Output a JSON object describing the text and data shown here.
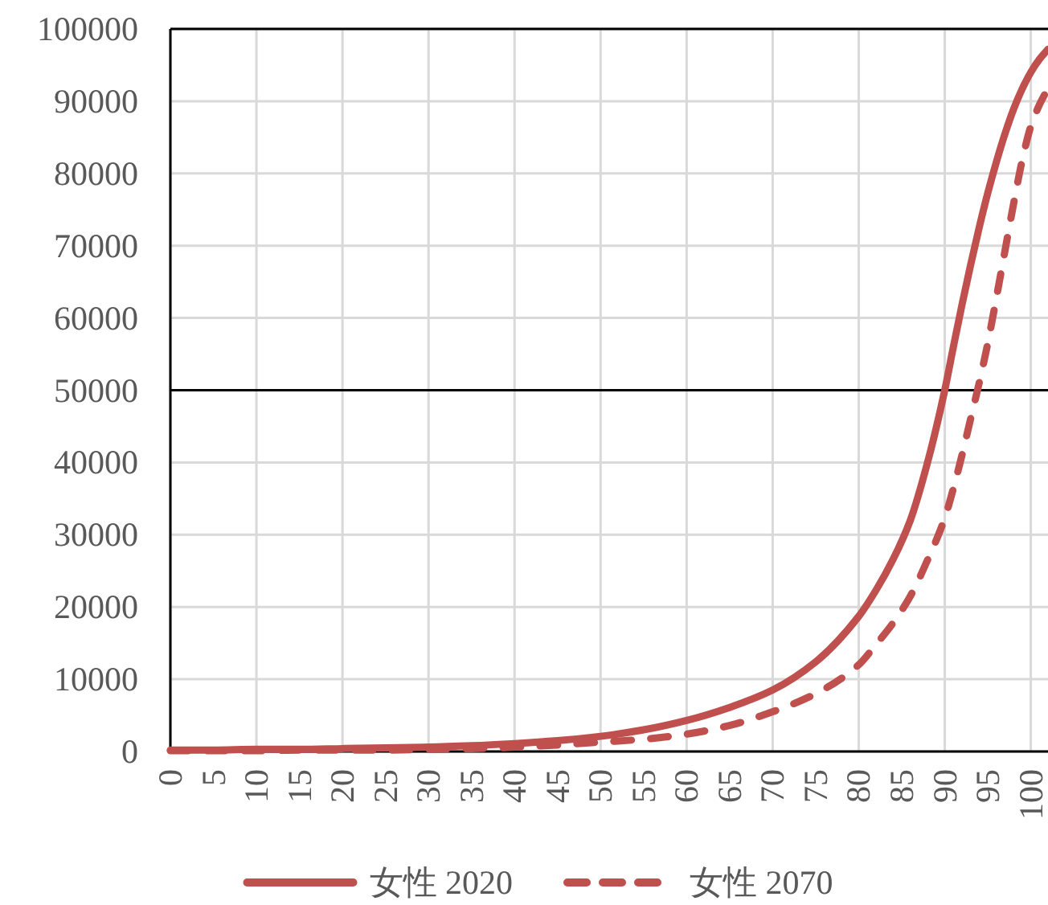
{
  "chart_data": {
    "type": "line",
    "x": [
      0,
      5,
      10,
      15,
      20,
      25,
      30,
      35,
      40,
      45,
      50,
      55,
      60,
      65,
      70,
      75,
      80,
      82,
      84,
      86,
      88,
      90,
      91,
      92,
      93,
      94,
      95,
      96,
      97,
      98,
      99,
      100,
      101,
      102
    ],
    "series": [
      {
        "name": "女性 2020",
        "color": "#c0504d",
        "line_style": "solid",
        "values": [
          200,
          200,
          300,
          300,
          400,
          500,
          600,
          800,
          1100,
          1500,
          2100,
          3000,
          4300,
          6100,
          8500,
          12400,
          18700,
          22300,
          26600,
          32000,
          40000,
          50000,
          56000,
          61800,
          67300,
          72500,
          77300,
          81600,
          85500,
          88900,
          91700,
          94000,
          95800,
          97200
        ]
      },
      {
        "name": "女性 2070",
        "color": "#c0504d",
        "line_style": "dashed",
        "values": [
          100,
          100,
          100,
          200,
          200,
          200,
          300,
          400,
          600,
          900,
          1300,
          1700,
          2400,
          3600,
          5500,
          8000,
          12000,
          14800,
          17800,
          21500,
          26500,
          32300,
          36400,
          41000,
          46000,
          51000,
          56500,
          62800,
          69300,
          75800,
          81800,
          86500,
          89500,
          91800
        ]
      }
    ],
    "xlim": [
      0,
      102
    ],
    "xticks": [
      0,
      5,
      10,
      15,
      20,
      25,
      30,
      35,
      40,
      45,
      50,
      55,
      60,
      65,
      70,
      75,
      80,
      85,
      90,
      95,
      100
    ],
    "ylim": [
      0,
      100000
    ],
    "yticks": [
      0,
      10000,
      20000,
      30000,
      40000,
      50000,
      60000,
      70000,
      80000,
      90000,
      100000
    ],
    "grid": true,
    "legend": "bottom",
    "ref_lines": [
      {
        "axis": "y",
        "value": 50000,
        "color": "#000000"
      }
    ]
  }
}
